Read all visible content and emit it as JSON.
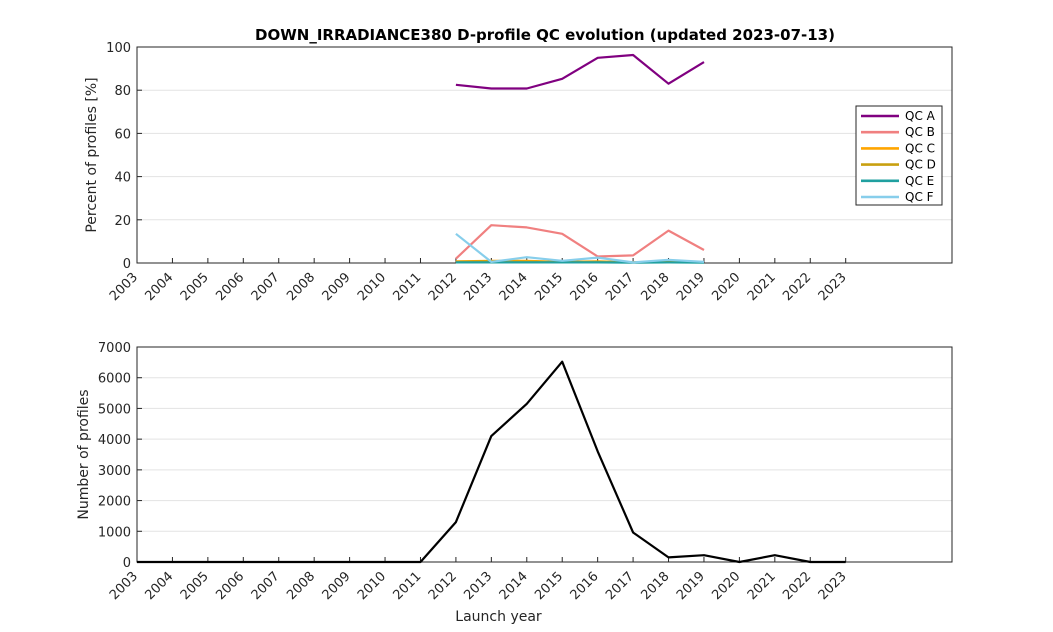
{
  "chart_data": [
    {
      "type": "line",
      "title": "DOWN_IRRADIANCE380 D-profile QC evolution (updated 2023-07-13)",
      "xlabel": "",
      "ylabel": "Percent of profiles [%]",
      "xlim": [
        2003,
        2026
      ],
      "ylim": [
        0,
        100
      ],
      "xticks": [
        "2003",
        "2004",
        "2005",
        "2006",
        "2007",
        "2008",
        "2009",
        "2010",
        "2011",
        "2012",
        "2013",
        "2014",
        "2015",
        "2016",
        "2017",
        "2018",
        "2019",
        "2020",
        "2021",
        "2022",
        "2023"
      ],
      "yticks": [
        "0",
        "20",
        "40",
        "60",
        "80",
        "100"
      ],
      "grid": "horizontal",
      "legend_position": "right",
      "x": [
        2012,
        2013,
        2014,
        2015,
        2016,
        2017,
        2018,
        2019
      ],
      "series": [
        {
          "name": "QC A",
          "color": "#800080",
          "values": [
            82.5,
            80.8,
            80.8,
            85.3,
            95.0,
            96.3,
            83.0,
            93.0
          ]
        },
        {
          "name": "QC B",
          "color": "#f08080",
          "values": [
            2.0,
            17.5,
            16.5,
            13.5,
            3.0,
            3.5,
            15.0,
            6.0
          ]
        },
        {
          "name": "QC C",
          "color": "#ffa500",
          "values": [
            0.8,
            1.0,
            1.0,
            0.5,
            0.8,
            0.3,
            0.5,
            0.3
          ]
        },
        {
          "name": "QC D",
          "color": "#c8a010",
          "values": [
            0.5,
            0.8,
            0.5,
            0.5,
            0.5,
            0.3,
            0.3,
            0.3
          ]
        },
        {
          "name": "QC E",
          "color": "#20a0a0",
          "values": [
            0.3,
            0.3,
            0.3,
            0.3,
            0.3,
            0.2,
            0.3,
            0.2
          ]
        },
        {
          "name": "QC F",
          "color": "#87ceeb",
          "values": [
            13.5,
            0.5,
            2.7,
            1.0,
            2.5,
            0.3,
            1.5,
            0.5
          ]
        }
      ]
    },
    {
      "type": "line",
      "title": "",
      "xlabel": "Launch year",
      "ylabel": "Number of profiles",
      "xlim": [
        2003,
        2026
      ],
      "ylim": [
        0,
        7000
      ],
      "xticks": [
        "2003",
        "2004",
        "2005",
        "2006",
        "2007",
        "2008",
        "2009",
        "2010",
        "2011",
        "2012",
        "2013",
        "2014",
        "2015",
        "2016",
        "2017",
        "2018",
        "2019",
        "2020",
        "2021",
        "2022",
        "2023"
      ],
      "yticks": [
        "0",
        "1000",
        "2000",
        "3000",
        "4000",
        "5000",
        "6000",
        "7000"
      ],
      "grid": "horizontal",
      "x": [
        2003,
        2004,
        2005,
        2006,
        2007,
        2008,
        2009,
        2010,
        2011,
        2012,
        2013,
        2014,
        2015,
        2016,
        2017,
        2018,
        2019,
        2020,
        2021,
        2022,
        2023
      ],
      "series": [
        {
          "color": "#000000",
          "values": [
            0,
            0,
            0,
            0,
            0,
            0,
            0,
            0,
            0,
            1300,
            4100,
            5150,
            6520,
            3600,
            960,
            150,
            220,
            0,
            220,
            0,
            0
          ]
        }
      ]
    }
  ]
}
